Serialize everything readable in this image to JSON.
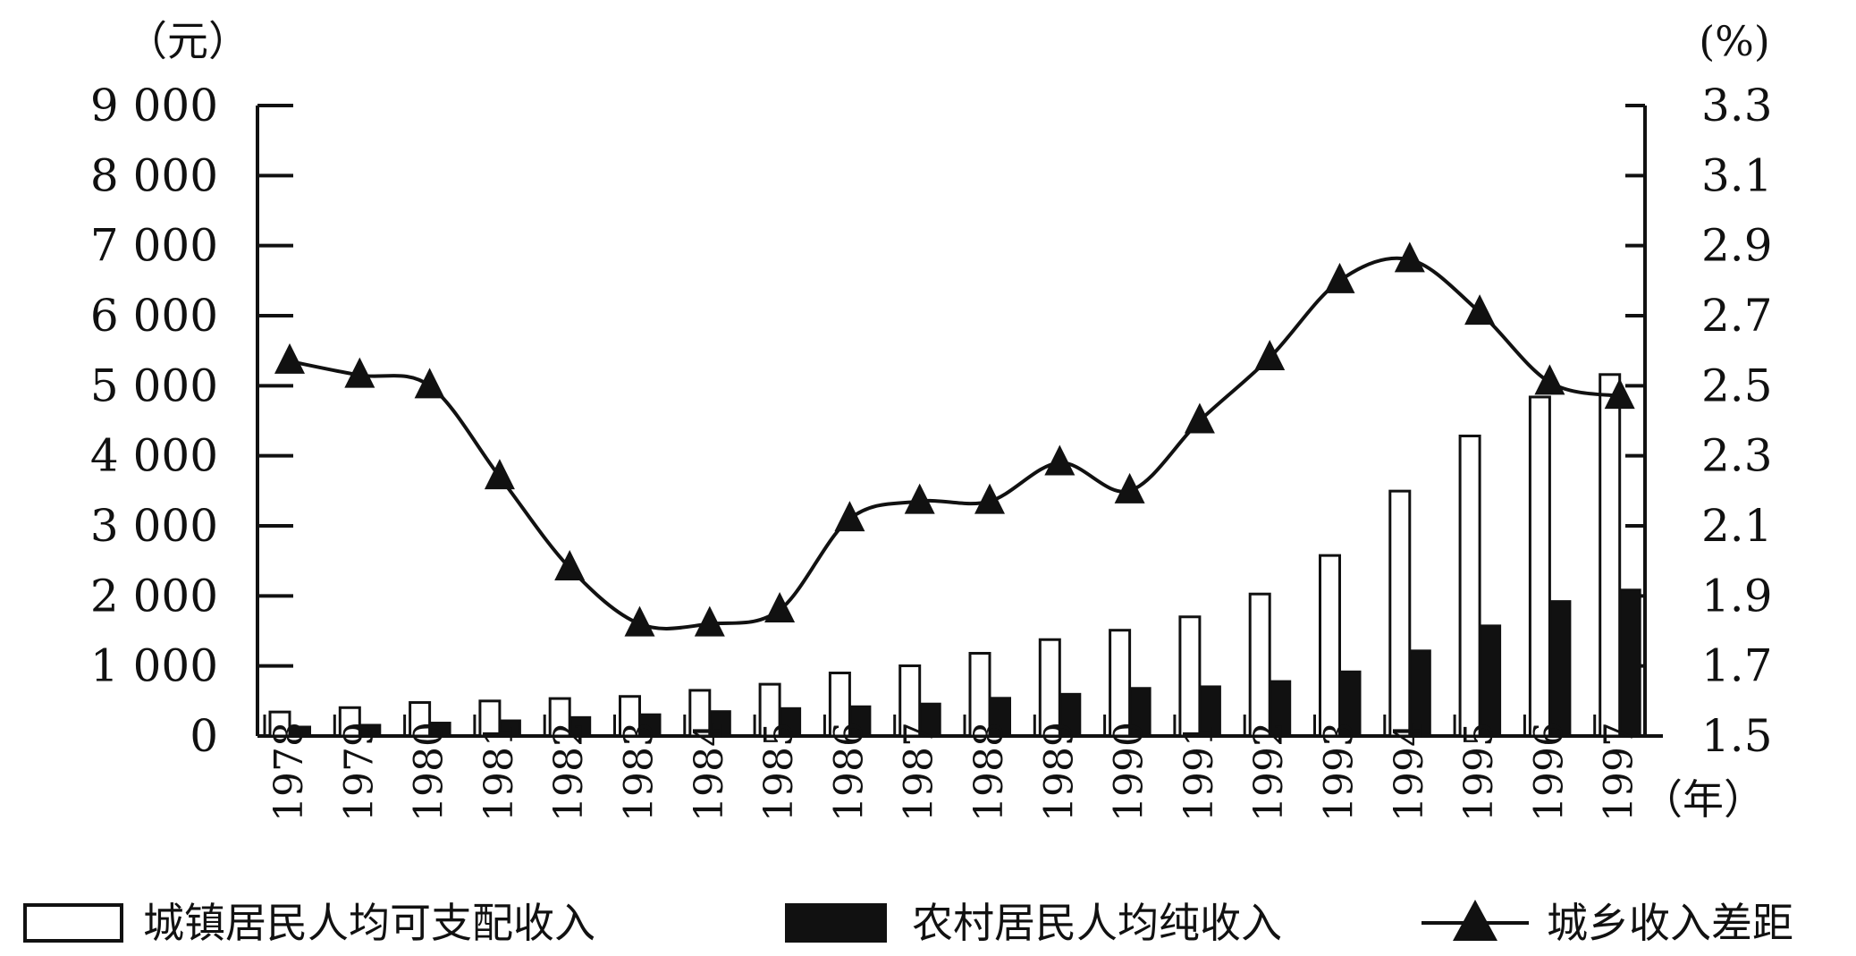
{
  "chart_data": {
    "type": "bar+line",
    "units": {
      "left": "（元）",
      "right": "(%)",
      "x": "（年）"
    },
    "categories": [
      "1978",
      "1979",
      "1980",
      "1981",
      "1982",
      "1983",
      "1984",
      "1985",
      "1986",
      "1987",
      "1988",
      "1989",
      "1990",
      "1991",
      "1992",
      "1993",
      "1994",
      "1995",
      "1996",
      "1997"
    ],
    "y_left": {
      "ylim": [
        0,
        9000
      ],
      "ticks": [
        0,
        1000,
        2000,
        3000,
        4000,
        5000,
        6000,
        7000,
        8000,
        9000
      ],
      "tick_labels": [
        "0",
        "1 000",
        "2 000",
        "3 000",
        "4 000",
        "5 000",
        "6 000",
        "7 000",
        "8 000",
        "9 000"
      ]
    },
    "y_right": {
      "ylim": [
        1.5,
        3.3
      ],
      "ticks": [
        1.5,
        1.7,
        1.9,
        2.1,
        2.3,
        2.5,
        2.7,
        2.9,
        3.1,
        3.3
      ],
      "tick_labels": [
        "1.5",
        "1.7",
        "1.9",
        "2.1",
        "2.3",
        "2.5",
        "2.7",
        "2.9",
        "3.1",
        "3.3"
      ]
    },
    "series": [
      {
        "name": "城镇居民人均可支配收入",
        "kind": "bar",
        "axis": "left",
        "fill": "#ffffff",
        "stroke": "#111111",
        "values": [
          343,
          405,
          478,
          500,
          535,
          565,
          652,
          739,
          900,
          1002,
          1181,
          1376,
          1510,
          1701,
          2027,
          2577,
          3496,
          4283,
          4839,
          5160
        ]
      },
      {
        "name": "农村居民人均纯收入",
        "kind": "bar",
        "axis": "left",
        "fill": "#111111",
        "stroke": "#111111",
        "values": [
          134,
          160,
          191,
          223,
          270,
          310,
          355,
          398,
          424,
          463,
          545,
          602,
          686,
          709,
          784,
          922,
          1221,
          1578,
          1926,
          2090
        ]
      },
      {
        "name": "城乡收入差距",
        "kind": "line",
        "axis": "right",
        "marker": "triangle",
        "color": "#111111",
        "values": [
          2.57,
          2.53,
          2.5,
          2.24,
          1.98,
          1.82,
          1.82,
          1.86,
          2.12,
          2.17,
          2.17,
          2.28,
          2.2,
          2.4,
          2.58,
          2.8,
          2.86,
          2.71,
          2.51,
          2.47
        ]
      }
    ],
    "legend_position": "bottom",
    "grid": false
  }
}
